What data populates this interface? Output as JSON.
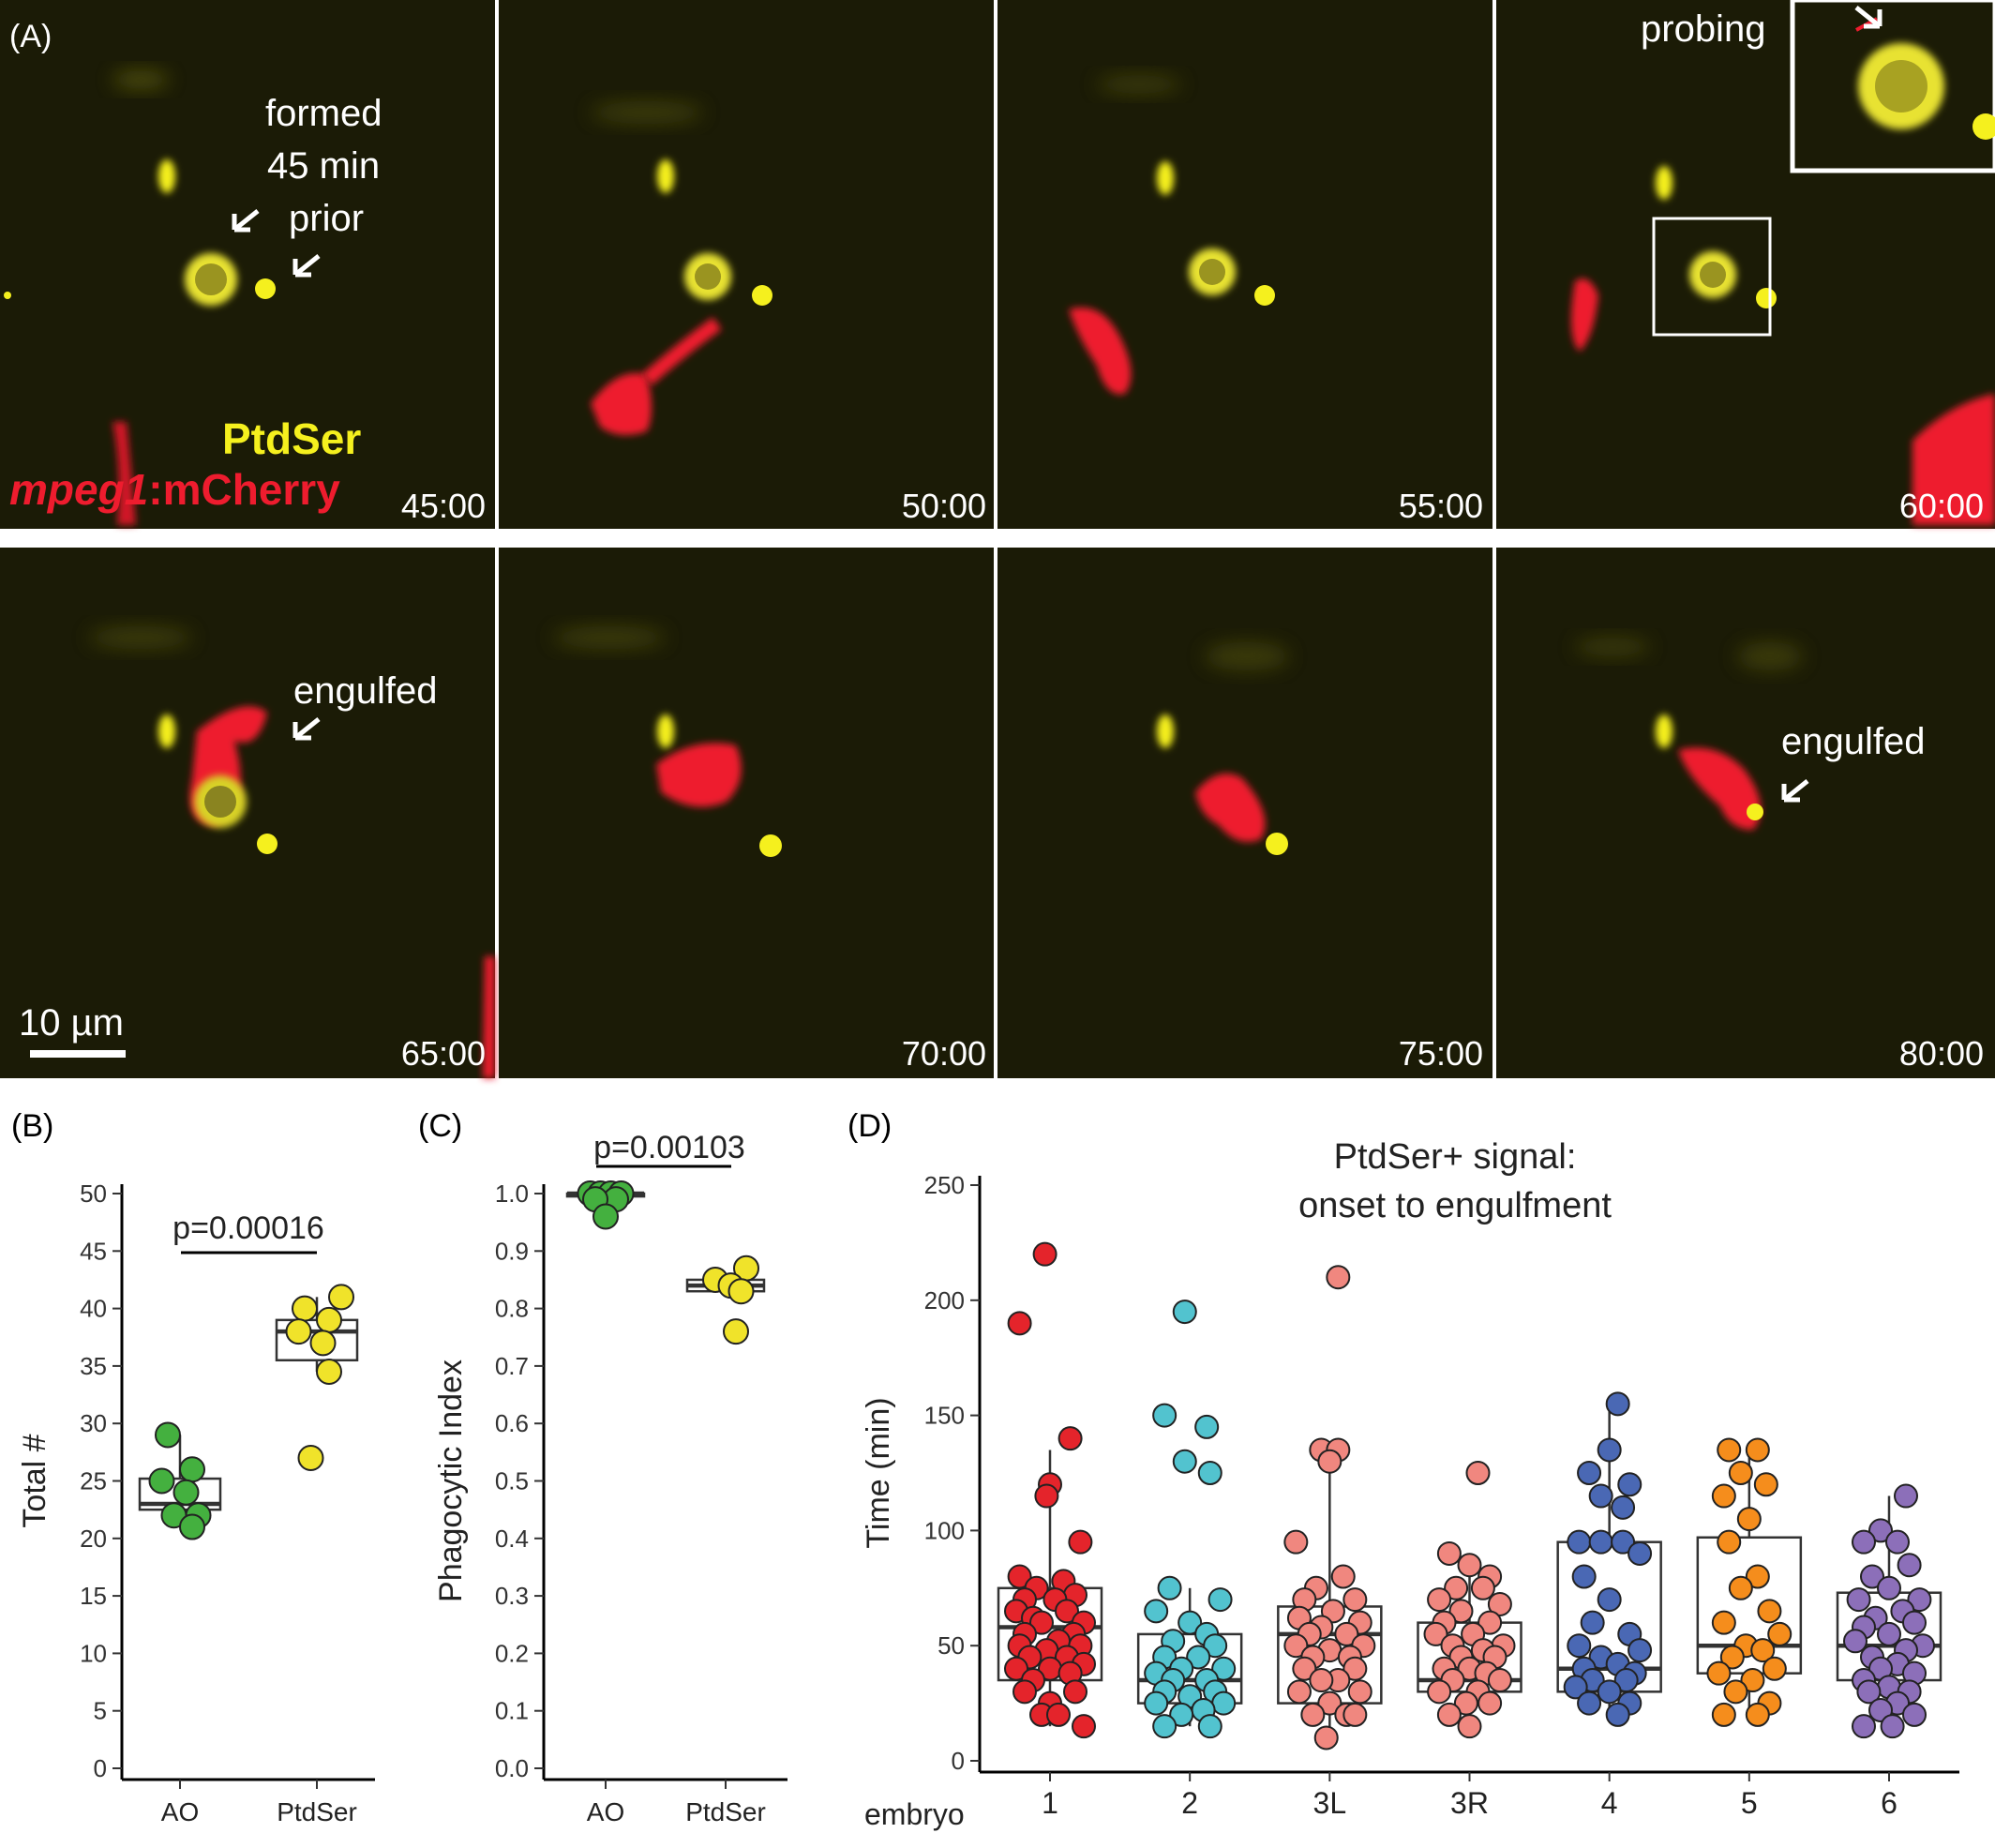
{
  "panel_a": {
    "panel_label": "(A)",
    "timestamps": [
      "45:00",
      "50:00",
      "55:00",
      "60:00",
      "65:00",
      "70:00",
      "75:00",
      "80:00"
    ],
    "annotations": {
      "formed_line1": "formed",
      "formed_line2": "45 min",
      "formed_line3": "prior",
      "probing": "probing",
      "engulfed_1": "engulfed",
      "engulfed_2": "engulfed"
    },
    "legend": {
      "ptdser": "PtdSer",
      "mpeg_italic": "mpeg1",
      "mpeg_rest": ":mCherry"
    },
    "scale_bar_label": "10 µm",
    "colors": {
      "background": "#1b1b06",
      "ptdser": "#f5f01e",
      "mcherry": "#ee1c2e",
      "annotation": "#ffffff"
    }
  },
  "chart_data": [
    {
      "panel_label": "(B)",
      "type": "box-scatter",
      "categories": [
        "AO",
        "PtdSer"
      ],
      "ylabel": "Total #",
      "ylim": [
        0,
        50
      ],
      "yticks": [
        0,
        5,
        10,
        15,
        20,
        25,
        30,
        35,
        40,
        45,
        50
      ],
      "annotation": "p=0.00016",
      "colors": [
        "#44b03f",
        "#f0e32a"
      ],
      "boxes": [
        {
          "q1": 22.5,
          "median": 23,
          "q3": 25.2,
          "whisker_low": 21,
          "whisker_high": 29
        },
        {
          "q1": 35.5,
          "median": 38,
          "q3": 39,
          "whisker_low": 34.5,
          "whisker_high": 41
        }
      ],
      "points": [
        [
          {
            "x": -0.1,
            "y": 29
          },
          {
            "x": 0.1,
            "y": 26
          },
          {
            "x": -0.15,
            "y": 25
          },
          {
            "x": 0.05,
            "y": 24
          },
          {
            "x": -0.05,
            "y": 22
          },
          {
            "x": 0.15,
            "y": 22
          },
          {
            "x": 0.1,
            "y": 21
          }
        ],
        [
          {
            "x": 0.2,
            "y": 41
          },
          {
            "x": -0.1,
            "y": 40
          },
          {
            "x": 0.1,
            "y": 39
          },
          {
            "x": -0.15,
            "y": 38
          },
          {
            "x": 0.05,
            "y": 37
          },
          {
            "x": 0.1,
            "y": 34.5
          },
          {
            "x": -0.05,
            "y": 27
          }
        ]
      ]
    },
    {
      "panel_label": "(C)",
      "type": "box-scatter",
      "categories": [
        "AO",
        "PtdSer"
      ],
      "ylabel": "Phagocytic Index",
      "ylim": [
        0,
        1
      ],
      "yticks": [
        "0.0",
        "0.1",
        "0.2",
        "0.3",
        "0.4",
        "0.5",
        "0.6",
        "0.7",
        "0.8",
        "0.9",
        "1.0"
      ],
      "annotation": "p=0.00103",
      "colors": [
        "#44b03f",
        "#f0e32a"
      ],
      "boxes": [
        {
          "q1": 0.995,
          "median": 1.0,
          "q3": 1.0,
          "whisker_low": 0.98,
          "whisker_high": 1.0
        },
        {
          "q1": 0.83,
          "median": 0.84,
          "q3": 0.85,
          "whisker_low": 0.82,
          "whisker_high": 0.86
        }
      ],
      "points": [
        [
          {
            "x": -0.15,
            "y": 1.0
          },
          {
            "x": -0.05,
            "y": 1.0
          },
          {
            "x": 0.05,
            "y": 1.0
          },
          {
            "x": 0.15,
            "y": 1.0
          },
          {
            "x": 0.1,
            "y": 0.99
          },
          {
            "x": -0.1,
            "y": 0.99
          },
          {
            "x": 0.0,
            "y": 0.96
          }
        ],
        [
          {
            "x": 0.2,
            "y": 0.87
          },
          {
            "x": -0.1,
            "y": 0.85
          },
          {
            "x": 0.05,
            "y": 0.84
          },
          {
            "x": 0.15,
            "y": 0.83
          },
          {
            "x": 0.1,
            "y": 0.76
          }
        ]
      ]
    },
    {
      "panel_label": "(D)",
      "type": "box-scatter",
      "title_line1": "PtdSer+ signal:",
      "title_line2": "onset to engulfment",
      "ylabel": "Time (min)",
      "x_axis_label": "embryo",
      "categories": [
        "1",
        "2",
        "3L",
        "3R",
        "4",
        "5",
        "6"
      ],
      "ylim": [
        0,
        250
      ],
      "yticks": [
        0,
        50,
        100,
        150,
        200,
        250
      ],
      "colors": [
        "#e4242b",
        "#52c3cf",
        "#f0877f",
        "#f0877f",
        "#4a68b4",
        "#f58d1c",
        "#8c6fb9"
      ],
      "boxes": [
        {
          "q1": 35,
          "median": 58,
          "q3": 75,
          "whisker_low": 15,
          "whisker_high": 135
        },
        {
          "q1": 25,
          "median": 35,
          "q3": 55,
          "whisker_low": 15,
          "whisker_high": 75
        },
        {
          "q1": 25,
          "median": 55,
          "q3": 67,
          "whisker_low": 10,
          "whisker_high": 135
        },
        {
          "q1": 30,
          "median": 35,
          "q3": 60,
          "whisker_low": 15,
          "whisker_high": 90
        },
        {
          "q1": 30,
          "median": 40,
          "q3": 95,
          "whisker_low": 20,
          "whisker_high": 155
        },
        {
          "q1": 38,
          "median": 50,
          "q3": 97,
          "whisker_low": 20,
          "whisker_high": 135
        },
        {
          "q1": 35,
          "median": 50,
          "q3": 73,
          "whisker_low": 15,
          "whisker_high": 115
        }
      ],
      "points": [
        [
          {
            "x": -0.03,
            "y": 220
          },
          {
            "x": -0.18,
            "y": 190
          },
          {
            "x": 0.12,
            "y": 140
          },
          {
            "x": 0.0,
            "y": 120
          },
          {
            "x": -0.02,
            "y": 115
          },
          {
            "x": 0.18,
            "y": 95
          },
          {
            "x": -0.18,
            "y": 80
          },
          {
            "x": 0.08,
            "y": 78
          },
          {
            "x": -0.08,
            "y": 75
          },
          {
            "x": 0.15,
            "y": 72
          },
          {
            "x": -0.15,
            "y": 70
          },
          {
            "x": 0.03,
            "y": 70
          },
          {
            "x": -0.2,
            "y": 65
          },
          {
            "x": 0.1,
            "y": 65
          },
          {
            "x": -0.1,
            "y": 62
          },
          {
            "x": 0.2,
            "y": 60
          },
          {
            "x": -0.05,
            "y": 60
          },
          {
            "x": 0.14,
            "y": 55
          },
          {
            "x": -0.15,
            "y": 55
          },
          {
            "x": 0.05,
            "y": 52
          },
          {
            "x": -0.18,
            "y": 50
          },
          {
            "x": 0.18,
            "y": 50
          },
          {
            "x": -0.02,
            "y": 48
          },
          {
            "x": 0.1,
            "y": 45
          },
          {
            "x": -0.12,
            "y": 45
          },
          {
            "x": 0.2,
            "y": 42
          },
          {
            "x": -0.2,
            "y": 40
          },
          {
            "x": 0.0,
            "y": 40
          },
          {
            "x": 0.12,
            "y": 38
          },
          {
            "x": -0.1,
            "y": 35
          },
          {
            "x": 0.15,
            "y": 30
          },
          {
            "x": -0.15,
            "y": 30
          },
          {
            "x": 0.0,
            "y": 25
          },
          {
            "x": -0.05,
            "y": 20
          },
          {
            "x": 0.05,
            "y": 20
          },
          {
            "x": 0.2,
            "y": 15
          }
        ],
        [
          {
            "x": -0.03,
            "y": 195
          },
          {
            "x": -0.15,
            "y": 150
          },
          {
            "x": 0.1,
            "y": 145
          },
          {
            "x": -0.03,
            "y": 130
          },
          {
            "x": 0.12,
            "y": 125
          },
          {
            "x": -0.12,
            "y": 75
          },
          {
            "x": 0.18,
            "y": 70
          },
          {
            "x": -0.2,
            "y": 65
          },
          {
            "x": 0.0,
            "y": 60
          },
          {
            "x": 0.1,
            "y": 55
          },
          {
            "x": -0.1,
            "y": 52
          },
          {
            "x": 0.15,
            "y": 50
          },
          {
            "x": -0.15,
            "y": 45
          },
          {
            "x": 0.05,
            "y": 45
          },
          {
            "x": -0.05,
            "y": 40
          },
          {
            "x": 0.2,
            "y": 40
          },
          {
            "x": -0.2,
            "y": 38
          },
          {
            "x": 0.1,
            "y": 35
          },
          {
            "x": -0.1,
            "y": 35
          },
          {
            "x": 0.15,
            "y": 30
          },
          {
            "x": -0.15,
            "y": 30
          },
          {
            "x": 0.0,
            "y": 28
          },
          {
            "x": 0.2,
            "y": 25
          },
          {
            "x": -0.2,
            "y": 25
          },
          {
            "x": 0.08,
            "y": 22
          },
          {
            "x": -0.05,
            "y": 20
          },
          {
            "x": 0.12,
            "y": 15
          },
          {
            "x": -0.15,
            "y": 15
          }
        ],
        [
          {
            "x": 0.05,
            "y": 210
          },
          {
            "x": -0.05,
            "y": 135
          },
          {
            "x": 0.05,
            "y": 135
          },
          {
            "x": 0.0,
            "y": 130
          },
          {
            "x": -0.2,
            "y": 95
          },
          {
            "x": 0.08,
            "y": 80
          },
          {
            "x": -0.08,
            "y": 75
          },
          {
            "x": 0.15,
            "y": 70
          },
          {
            "x": -0.15,
            "y": 70
          },
          {
            "x": 0.02,
            "y": 65
          },
          {
            "x": -0.18,
            "y": 62
          },
          {
            "x": 0.18,
            "y": 60
          },
          {
            "x": -0.05,
            "y": 58
          },
          {
            "x": 0.1,
            "y": 55
          },
          {
            "x": -0.12,
            "y": 55
          },
          {
            "x": 0.2,
            "y": 50
          },
          {
            "x": -0.2,
            "y": 50
          },
          {
            "x": 0.0,
            "y": 48
          },
          {
            "x": 0.12,
            "y": 45
          },
          {
            "x": -0.1,
            "y": 45
          },
          {
            "x": 0.15,
            "y": 40
          },
          {
            "x": -0.15,
            "y": 40
          },
          {
            "x": 0.05,
            "y": 35
          },
          {
            "x": -0.05,
            "y": 35
          },
          {
            "x": 0.18,
            "y": 30
          },
          {
            "x": -0.18,
            "y": 30
          },
          {
            "x": 0.0,
            "y": 25
          },
          {
            "x": 0.1,
            "y": 20
          },
          {
            "x": -0.1,
            "y": 20
          },
          {
            "x": 0.15,
            "y": 20
          },
          {
            "x": -0.02,
            "y": 10
          }
        ],
        [
          {
            "x": 0.05,
            "y": 125
          },
          {
            "x": -0.12,
            "y": 90
          },
          {
            "x": 0.0,
            "y": 85
          },
          {
            "x": 0.12,
            "y": 80
          },
          {
            "x": -0.08,
            "y": 75
          },
          {
            "x": 0.08,
            "y": 75
          },
          {
            "x": -0.18,
            "y": 70
          },
          {
            "x": 0.18,
            "y": 68
          },
          {
            "x": -0.05,
            "y": 65
          },
          {
            "x": 0.12,
            "y": 60
          },
          {
            "x": -0.15,
            "y": 60
          },
          {
            "x": 0.02,
            "y": 55
          },
          {
            "x": -0.2,
            "y": 55
          },
          {
            "x": 0.2,
            "y": 50
          },
          {
            "x": -0.1,
            "y": 50
          },
          {
            "x": 0.08,
            "y": 48
          },
          {
            "x": -0.05,
            "y": 45
          },
          {
            "x": 0.15,
            "y": 45
          },
          {
            "x": -0.15,
            "y": 40
          },
          {
            "x": 0.0,
            "y": 40
          },
          {
            "x": 0.1,
            "y": 38
          },
          {
            "x": -0.1,
            "y": 35
          },
          {
            "x": 0.18,
            "y": 35
          },
          {
            "x": -0.18,
            "y": 30
          },
          {
            "x": 0.05,
            "y": 30
          },
          {
            "x": -0.02,
            "y": 25
          },
          {
            "x": 0.12,
            "y": 25
          },
          {
            "x": -0.12,
            "y": 20
          },
          {
            "x": 0.0,
            "y": 15
          }
        ],
        [
          {
            "x": 0.05,
            "y": 155
          },
          {
            "x": 0.0,
            "y": 135
          },
          {
            "x": -0.12,
            "y": 125
          },
          {
            "x": 0.12,
            "y": 120
          },
          {
            "x": -0.05,
            "y": 115
          },
          {
            "x": 0.08,
            "y": 110
          },
          {
            "x": -0.18,
            "y": 95
          },
          {
            "x": -0.05,
            "y": 95
          },
          {
            "x": 0.08,
            "y": 95
          },
          {
            "x": 0.18,
            "y": 90
          },
          {
            "x": -0.15,
            "y": 80
          },
          {
            "x": 0.0,
            "y": 70
          },
          {
            "x": -0.1,
            "y": 60
          },
          {
            "x": 0.12,
            "y": 55
          },
          {
            "x": -0.18,
            "y": 50
          },
          {
            "x": 0.18,
            "y": 48
          },
          {
            "x": -0.05,
            "y": 45
          },
          {
            "x": 0.05,
            "y": 42
          },
          {
            "x": -0.15,
            "y": 40
          },
          {
            "x": 0.15,
            "y": 38
          },
          {
            "x": -0.1,
            "y": 35
          },
          {
            "x": 0.1,
            "y": 35
          },
          {
            "x": -0.2,
            "y": 32
          },
          {
            "x": 0.0,
            "y": 30
          },
          {
            "x": -0.12,
            "y": 25
          },
          {
            "x": 0.12,
            "y": 25
          },
          {
            "x": 0.05,
            "y": 20
          }
        ],
        [
          {
            "x": -0.12,
            "y": 135
          },
          {
            "x": 0.05,
            "y": 135
          },
          {
            "x": -0.05,
            "y": 125
          },
          {
            "x": 0.1,
            "y": 120
          },
          {
            "x": -0.15,
            "y": 115
          },
          {
            "x": 0.0,
            "y": 105
          },
          {
            "x": -0.12,
            "y": 95
          },
          {
            "x": 0.05,
            "y": 80
          },
          {
            "x": -0.05,
            "y": 75
          },
          {
            "x": 0.12,
            "y": 65
          },
          {
            "x": -0.15,
            "y": 60
          },
          {
            "x": 0.18,
            "y": 55
          },
          {
            "x": -0.02,
            "y": 50
          },
          {
            "x": 0.08,
            "y": 48
          },
          {
            "x": -0.1,
            "y": 45
          },
          {
            "x": 0.15,
            "y": 40
          },
          {
            "x": -0.18,
            "y": 38
          },
          {
            "x": 0.02,
            "y": 35
          },
          {
            "x": -0.08,
            "y": 30
          },
          {
            "x": 0.12,
            "y": 25
          },
          {
            "x": -0.15,
            "y": 20
          },
          {
            "x": 0.05,
            "y": 20
          }
        ],
        [
          {
            "x": 0.1,
            "y": 115
          },
          {
            "x": -0.05,
            "y": 100
          },
          {
            "x": -0.15,
            "y": 95
          },
          {
            "x": 0.05,
            "y": 95
          },
          {
            "x": 0.12,
            "y": 85
          },
          {
            "x": -0.1,
            "y": 80
          },
          {
            "x": 0.0,
            "y": 75
          },
          {
            "x": -0.18,
            "y": 70
          },
          {
            "x": 0.18,
            "y": 70
          },
          {
            "x": 0.08,
            "y": 65
          },
          {
            "x": -0.08,
            "y": 62
          },
          {
            "x": 0.15,
            "y": 60
          },
          {
            "x": -0.15,
            "y": 58
          },
          {
            "x": 0.0,
            "y": 55
          },
          {
            "x": -0.2,
            "y": 52
          },
          {
            "x": 0.2,
            "y": 50
          },
          {
            "x": 0.1,
            "y": 48
          },
          {
            "x": -0.1,
            "y": 45
          },
          {
            "x": 0.05,
            "y": 42
          },
          {
            "x": -0.05,
            "y": 40
          },
          {
            "x": 0.15,
            "y": 38
          },
          {
            "x": -0.15,
            "y": 35
          },
          {
            "x": 0.0,
            "y": 32
          },
          {
            "x": -0.12,
            "y": 30
          },
          {
            "x": 0.12,
            "y": 30
          },
          {
            "x": 0.05,
            "y": 25
          },
          {
            "x": -0.05,
            "y": 22
          },
          {
            "x": 0.15,
            "y": 20
          },
          {
            "x": -0.15,
            "y": 15
          },
          {
            "x": 0.02,
            "y": 15
          }
        ]
      ]
    }
  ]
}
